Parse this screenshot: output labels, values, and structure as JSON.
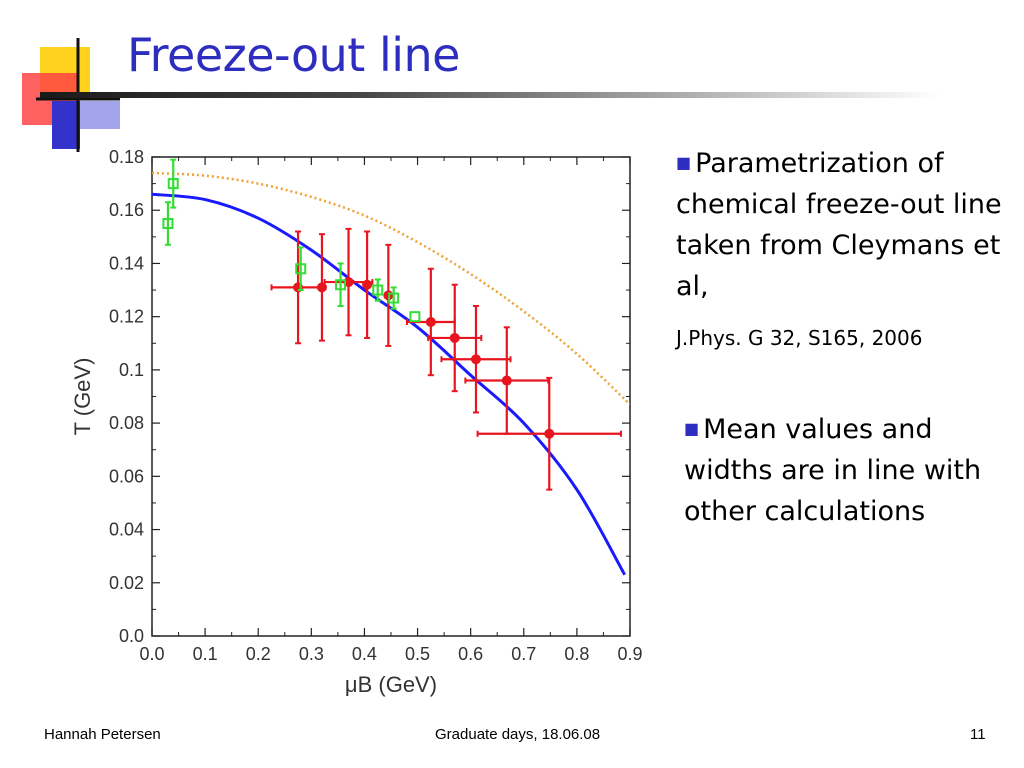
{
  "slide": {
    "title": "Freeze-out line",
    "bullets": [
      "Parametrization of chemical freeze-out line taken from Cleymans et al,",
      "Mean values and widths are in line with other calculations"
    ],
    "reference": "J.Phys. G 32, S165, 2006"
  },
  "footer": {
    "author": "Hannah Petersen",
    "event": "Graduate days, 18.06.08",
    "page": "11"
  },
  "colors": {
    "title": "#2d2dbf",
    "bullet_marker": "#2d2dbf",
    "red_series": "#e8141e",
    "green_series": "#33dd33",
    "fit_curve": "#1a1aff",
    "dotted_curve": "#f0a030",
    "logo_yellow": "#ffd21e",
    "logo_red": "#ff3333",
    "logo_blue": "#3333cc"
  },
  "chart_data": {
    "type": "scatter",
    "xlabel": "μB (GeV)",
    "ylabel": "T (GeV)",
    "xlim": [
      0.0,
      0.9
    ],
    "ylim": [
      0.0,
      0.18
    ],
    "xticks": [
      "0.0",
      "0.1",
      "0.2",
      "0.3",
      "0.4",
      "0.5",
      "0.6",
      "0.7",
      "0.8",
      "0.9"
    ],
    "yticks": [
      "0.0",
      "0.02",
      "0.04",
      "0.06",
      "0.08",
      "0.1",
      "0.12",
      "0.14",
      "0.16",
      "0.18"
    ],
    "grid": false,
    "series": [
      {
        "marker": "circle",
        "color": "#e8141e",
        "points": [
          {
            "x": 0.275,
            "y": 0.131,
            "xerr": 0.05,
            "yerr": 0.021
          },
          {
            "x": 0.32,
            "y": 0.131,
            "xerr": 0.0,
            "yerr": 0.02
          },
          {
            "x": 0.37,
            "y": 0.133,
            "xerr": 0.045,
            "yerr": 0.02
          },
          {
            "x": 0.405,
            "y": 0.132,
            "xerr": 0.0,
            "yerr": 0.02
          },
          {
            "x": 0.445,
            "y": 0.128,
            "xerr": 0.0,
            "yerr": 0.019
          },
          {
            "x": 0.525,
            "y": 0.118,
            "xerr": 0.045,
            "yerr": 0.02
          },
          {
            "x": 0.57,
            "y": 0.112,
            "xerr": 0.05,
            "yerr": 0.02
          },
          {
            "x": 0.61,
            "y": 0.104,
            "xerr": 0.065,
            "yerr": 0.02
          },
          {
            "x": 0.668,
            "y": 0.096,
            "xerr": 0.078,
            "yerr": 0.02
          },
          {
            "x": 0.748,
            "y": 0.076,
            "xerr": 0.135,
            "yerr": 0.021
          }
        ]
      },
      {
        "marker": "square",
        "color": "#33dd33",
        "points": [
          {
            "x": 0.03,
            "y": 0.155,
            "yerr": 0.008
          },
          {
            "x": 0.04,
            "y": 0.17,
            "yerr": 0.009
          },
          {
            "x": 0.28,
            "y": 0.138,
            "yerr": 0.008
          },
          {
            "x": 0.355,
            "y": 0.132,
            "yerr": 0.008
          },
          {
            "x": 0.425,
            "y": 0.13,
            "yerr": 0.004
          },
          {
            "x": 0.455,
            "y": 0.127,
            "yerr": 0.004
          },
          {
            "x": 0.495,
            "y": 0.12,
            "yerr": 0.0
          }
        ]
      }
    ],
    "curves": [
      {
        "style": "solid",
        "color": "#1a1aff",
        "points": [
          [
            0.0,
            0.166
          ],
          [
            0.1,
            0.164
          ],
          [
            0.2,
            0.157
          ],
          [
            0.3,
            0.145
          ],
          [
            0.4,
            0.13
          ],
          [
            0.5,
            0.116
          ],
          [
            0.6,
            0.098
          ],
          [
            0.7,
            0.08
          ],
          [
            0.8,
            0.055
          ],
          [
            0.89,
            0.023
          ]
        ]
      },
      {
        "style": "dotted",
        "color": "#f0a030",
        "points": [
          [
            0.0,
            0.174
          ],
          [
            0.1,
            0.173
          ],
          [
            0.2,
            0.17
          ],
          [
            0.3,
            0.165
          ],
          [
            0.4,
            0.158
          ],
          [
            0.5,
            0.148
          ],
          [
            0.6,
            0.136
          ],
          [
            0.7,
            0.122
          ],
          [
            0.8,
            0.106
          ],
          [
            0.9,
            0.087
          ]
        ]
      }
    ]
  }
}
